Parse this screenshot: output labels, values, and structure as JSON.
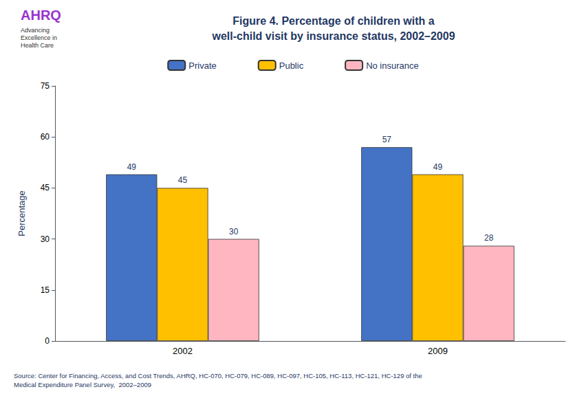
{
  "chart_data": {
    "type": "bar",
    "title": "Figure 4. Percentage of children with a\nwell-child visit by insurance status, 2002–2009",
    "y_label": "Percentage",
    "categories": [
      "2002",
      "2009"
    ],
    "series": [
      {
        "name": "Private",
        "color": "#4472C4",
        "values": [
          49,
          57
        ]
      },
      {
        "name": "Public",
        "color": "#FFC000",
        "values": [
          45,
          49
        ]
      },
      {
        "name": "No insurance",
        "color": "#FFB6C1",
        "values": [
          30,
          28
        ]
      }
    ],
    "ylim": [
      0,
      75
    ],
    "yticks": [
      0,
      15,
      30,
      45,
      60,
      75
    ],
    "grid": false,
    "legend": "top",
    "data_labels": true,
    "annotations": [
      "AHRQ",
      "Advancing\nExcellence in\nHealth Care",
      "Source: Center for Financing, Access, and Cost Trends, AHRQ, HC-070, HC-079, HC-089, HC-097, HC-105, HC-113, HC-121, HC-129 of the\nMedical Expenditure Panel Survey,  2002–2009"
    ]
  }
}
